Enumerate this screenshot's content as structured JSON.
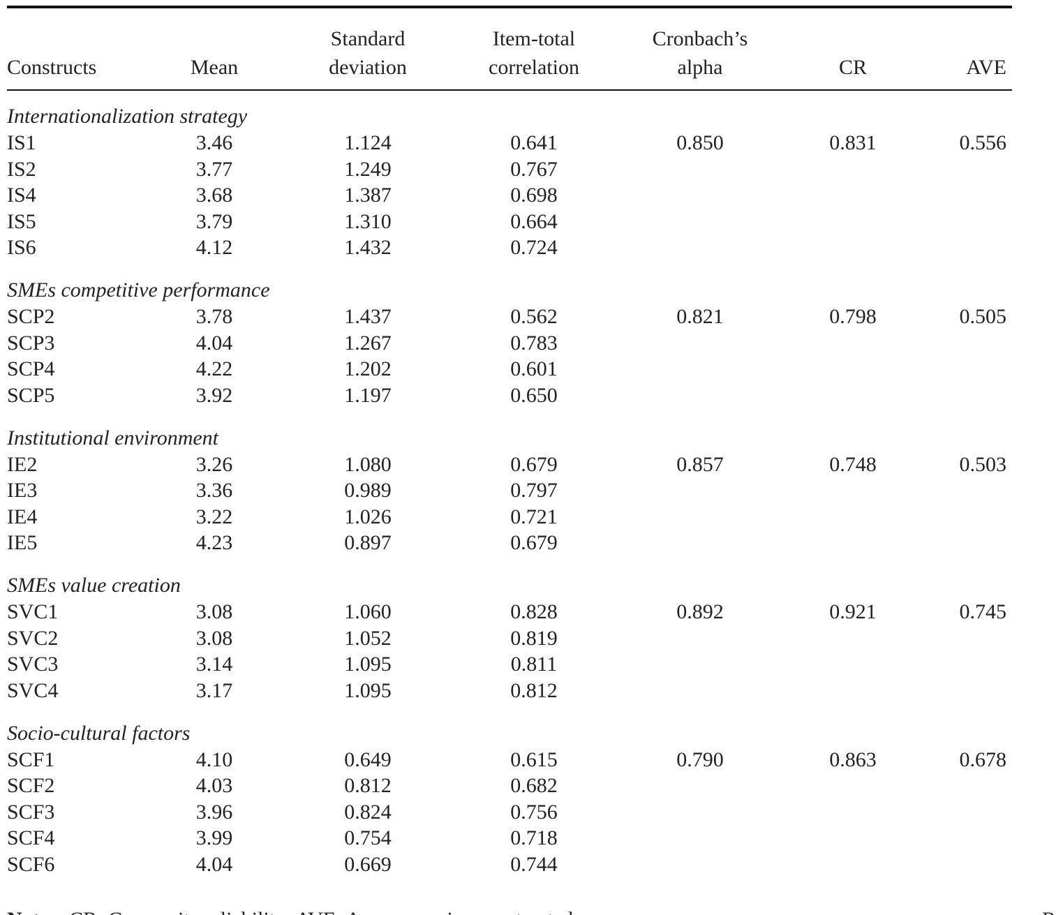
{
  "table": {
    "headers": [
      [
        "Constructs"
      ],
      [
        "Mean"
      ],
      [
        "Standard",
        "deviation"
      ],
      [
        "Item-total",
        "correlation"
      ],
      [
        "Cronbach’s",
        "alpha"
      ],
      [
        "CR"
      ],
      [
        "AVE"
      ]
    ],
    "groups": [
      {
        "title": "Internationalization strategy",
        "alpha": "0.850",
        "cr": "0.831",
        "ave": "0.556",
        "rows": [
          [
            "IS1",
            "3.46",
            "1.124",
            "0.641"
          ],
          [
            "IS2",
            "3.77",
            "1.249",
            "0.767"
          ],
          [
            "IS4",
            "3.68",
            "1.387",
            "0.698"
          ],
          [
            "IS5",
            "3.79",
            "1.310",
            "0.664"
          ],
          [
            "IS6",
            "4.12",
            "1.432",
            "0.724"
          ]
        ]
      },
      {
        "title": "SMEs competitive performance",
        "alpha": "0.821",
        "cr": "0.798",
        "ave": "0.505",
        "rows": [
          [
            "SCP2",
            "3.78",
            "1.437",
            "0.562"
          ],
          [
            "SCP3",
            "4.04",
            "1.267",
            "0.783"
          ],
          [
            "SCP4",
            "4.22",
            "1.202",
            "0.601"
          ],
          [
            "SCP5",
            "3.92",
            "1.197",
            "0.650"
          ]
        ]
      },
      {
        "title": "Institutional environment",
        "alpha": "0.857",
        "cr": "0.748",
        "ave": "0.503",
        "rows": [
          [
            "IE2",
            "3.26",
            "1.080",
            "0.679"
          ],
          [
            "IE3",
            "3.36",
            "0.989",
            "0.797"
          ],
          [
            "IE4",
            "3.22",
            "1.026",
            "0.721"
          ],
          [
            "IE5",
            "4.23",
            "0.897",
            "0.679"
          ]
        ]
      },
      {
        "title": "SMEs value creation",
        "alpha": "0.892",
        "cr": "0.921",
        "ave": "0.745",
        "rows": [
          [
            "SVC1",
            "3.08",
            "1.060",
            "0.828"
          ],
          [
            "SVC2",
            "3.08",
            "1.052",
            "0.819"
          ],
          [
            "SVC3",
            "3.14",
            "1.095",
            "0.811"
          ],
          [
            "SVC4",
            "3.17",
            "1.095",
            "0.812"
          ]
        ]
      },
      {
        "title": "Socio-cultural factors",
        "alpha": "0.790",
        "cr": "0.863",
        "ave": "0.678",
        "rows": [
          [
            "SCF1",
            "4.10",
            "0.649",
            "0.615"
          ],
          [
            "SCF2",
            "4.03",
            "0.812",
            "0.682"
          ],
          [
            "SCF3",
            "3.96",
            "0.824",
            "0.756"
          ],
          [
            "SCF4",
            "3.99",
            "0.754",
            "0.718"
          ],
          [
            "SCF6",
            "4.04",
            "0.669",
            "0.744"
          ]
        ]
      }
    ],
    "notes": {
      "label": "Notes:",
      "text": "CR: Composite reliability; AVE: Average variance extracted"
    },
    "side_text": "Re"
  }
}
